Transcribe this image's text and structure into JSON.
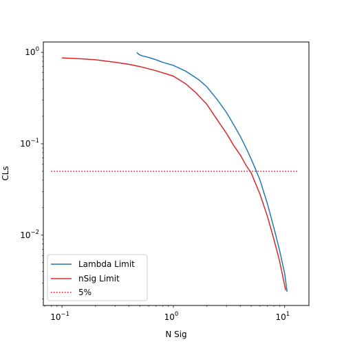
{
  "chart_data": {
    "type": "line",
    "title": "",
    "xlabel": "N Sig",
    "ylabel": "CLs",
    "xscale": "log",
    "yscale": "log",
    "xlim": [
      0.068,
      16.5
    ],
    "ylim": [
      0.0017,
      1.3
    ],
    "xticks": [
      {
        "value": 0.1,
        "base": "10",
        "exp": "−1"
      },
      {
        "value": 1,
        "base": "10",
        "exp": "0"
      },
      {
        "value": 10,
        "base": "10",
        "exp": "1"
      }
    ],
    "yticks": [
      {
        "value": 0.01,
        "base": "10",
        "exp": "−2"
      },
      {
        "value": 0.1,
        "base": "10",
        "exp": "−1"
      },
      {
        "value": 1,
        "base": "10",
        "exp": "0"
      }
    ],
    "legend_position": "lower-left",
    "grid": false,
    "series": [
      {
        "name": "Lambda Limit",
        "color": "#1f77b4",
        "style": "solid",
        "points": [
          [
            0.47,
            1.0
          ],
          [
            0.49,
            0.95
          ],
          [
            0.52,
            0.92
          ],
          [
            0.6,
            0.88
          ],
          [
            0.7,
            0.83
          ],
          [
            0.8,
            0.78
          ],
          [
            1.0,
            0.72
          ],
          [
            1.3,
            0.62
          ],
          [
            1.7,
            0.5
          ],
          [
            2.0,
            0.42
          ],
          [
            2.5,
            0.3
          ],
          [
            3.0,
            0.22
          ],
          [
            3.5,
            0.16
          ],
          [
            4.0,
            0.12
          ],
          [
            4.5,
            0.09
          ],
          [
            5.0,
            0.068
          ],
          [
            5.5,
            0.052
          ],
          [
            6.0,
            0.04
          ],
          [
            7.0,
            0.022
          ],
          [
            8.0,
            0.012
          ],
          [
            9.0,
            0.0068
          ],
          [
            10.0,
            0.0038
          ],
          [
            10.5,
            0.0024
          ]
        ]
      },
      {
        "name": "nSig Limit",
        "color": "#d62728",
        "style": "solid",
        "points": [
          [
            0.1,
            0.87
          ],
          [
            0.15,
            0.85
          ],
          [
            0.2,
            0.83
          ],
          [
            0.3,
            0.78
          ],
          [
            0.4,
            0.74
          ],
          [
            0.5,
            0.7
          ],
          [
            0.7,
            0.63
          ],
          [
            1.0,
            0.55
          ],
          [
            1.3,
            0.45
          ],
          [
            1.6,
            0.36
          ],
          [
            2.0,
            0.27
          ],
          [
            2.5,
            0.18
          ],
          [
            3.0,
            0.13
          ],
          [
            3.5,
            0.095
          ],
          [
            4.0,
            0.075
          ],
          [
            4.5,
            0.058
          ],
          [
            5.0,
            0.048
          ],
          [
            6.0,
            0.028
          ],
          [
            7.0,
            0.016
          ],
          [
            8.0,
            0.009
          ],
          [
            9.0,
            0.0052
          ],
          [
            10.2,
            0.0025
          ]
        ]
      },
      {
        "name": "5%",
        "color": "#ff0000",
        "style": "dotted",
        "points": [
          [
            0.08,
            0.05
          ],
          [
            13.0,
            0.05
          ]
        ]
      }
    ]
  }
}
